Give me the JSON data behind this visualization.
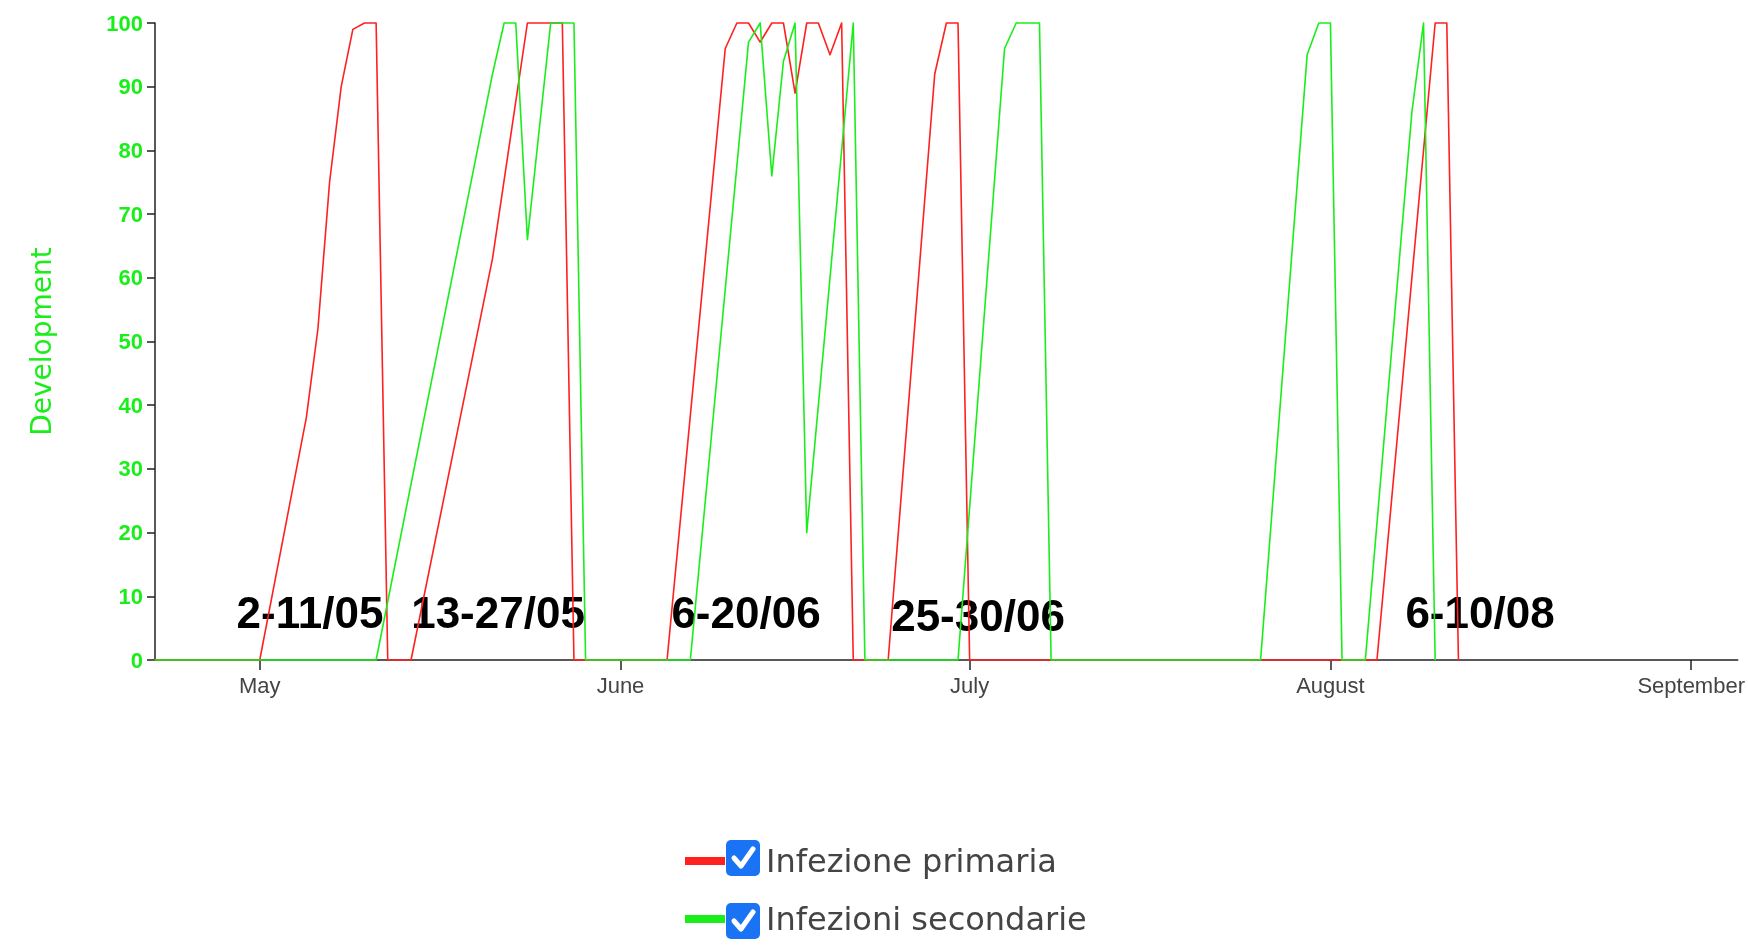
{
  "chart_data": {
    "type": "line",
    "ylabel": "Development",
    "xlim": [
      "--04-22",
      "--09-05"
    ],
    "xticks": [
      {
        "value": "--05-01",
        "label": "May"
      },
      {
        "value": "--06-01",
        "label": "June"
      },
      {
        "value": "--07-01",
        "label": "July"
      },
      {
        "value": "--08-01",
        "label": "August"
      },
      {
        "value": "--09-01",
        "label": "September"
      }
    ],
    "ylim": [
      0,
      100
    ],
    "yticks": [
      0,
      10,
      20,
      30,
      40,
      50,
      60,
      70,
      80,
      90,
      100
    ],
    "grid": false,
    "legend": "bottom",
    "marker": "none",
    "line_style": "solid",
    "series": [
      {
        "name": "Infezione primaria",
        "color": "#ff2020",
        "x": [
          "--04-22",
          "--05-01",
          "--05-05",
          "--05-06",
          "--05-07",
          "--05-08",
          "--05-09",
          "--05-10",
          "--05-11",
          "--05-12",
          "--05-14",
          "--05-21",
          "--05-24",
          "--05-27",
          "--05-28",
          "--06-05",
          "--06-10",
          "--06-11",
          "--06-12",
          "--06-13",
          "--06-14",
          "--06-15",
          "--06-16",
          "--06-17",
          "--06-18",
          "--06-19",
          "--06-20",
          "--06-21",
          "--06-24",
          "--06-28",
          "--06-29",
          "--06-30",
          "--07-01",
          "--08-05",
          "--08-10",
          "--08-11",
          "--08-12"
        ],
        "values": [
          0,
          0,
          38,
          52,
          75,
          90,
          99,
          100,
          100,
          0,
          0,
          63,
          100,
          100,
          0,
          0,
          96,
          100,
          100,
          97,
          100,
          100,
          89,
          100,
          100,
          95,
          100,
          0,
          0,
          92,
          100,
          100,
          0,
          0,
          100,
          100,
          0
        ]
      },
      {
        "name": "Infezioni secondarie",
        "color": "#1aee1a",
        "x": [
          "--04-22",
          "--05-11",
          "--05-21",
          "--05-22",
          "--05-23",
          "--05-24",
          "--05-26",
          "--05-28",
          "--05-29",
          "--06-07",
          "--06-12",
          "--06-13",
          "--06-14",
          "--06-15",
          "--06-16",
          "--06-17",
          "--06-21",
          "--06-22",
          "--06-30",
          "--07-04",
          "--07-05",
          "--07-07",
          "--07-08",
          "--07-26",
          "--07-30",
          "--07-31",
          "--08-01",
          "--08-02",
          "--08-04",
          "--08-08",
          "--08-09",
          "--08-10"
        ],
        "values": [
          0,
          0,
          92,
          100,
          100,
          66,
          100,
          100,
          0,
          0,
          97,
          100,
          76,
          94,
          100,
          20,
          100,
          0,
          0,
          96,
          100,
          100,
          0,
          0,
          95,
          100,
          100,
          0,
          0,
          86,
          100,
          0
        ]
      }
    ],
    "annotations": [
      "2-11/05",
      "13-27/05",
      "6-20/06",
      "25-30/06",
      "6-10/08"
    ]
  }
}
